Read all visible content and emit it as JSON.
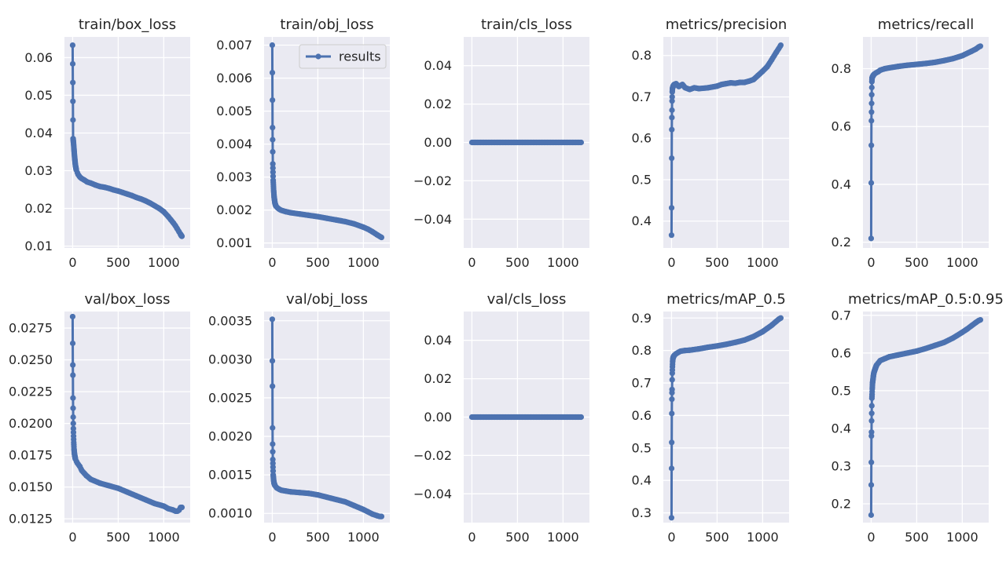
{
  "style": {
    "panel_bg": "#eaeaf2",
    "grid": "#ffffff",
    "series_color": "#4c72b0",
    "text_color": "#262626"
  },
  "legend": {
    "label": "results",
    "panel": 1,
    "placement": "upper-right"
  },
  "chart_data": [
    {
      "type": "line",
      "title": "train/box_loss",
      "xlim": [
        -90,
        1290
      ],
      "ylim": [
        0.0095,
        0.0655
      ],
      "xticks": [
        0,
        500,
        1000
      ],
      "xtick_labels": [
        "0",
        "500",
        "1000"
      ],
      "yticks": [
        0.01,
        0.02,
        0.03,
        0.04,
        0.05,
        0.06
      ],
      "ytick_labels": [
        "0.01",
        "0.02",
        "0.03",
        "0.04",
        "0.05",
        "0.06"
      ],
      "series": [
        {
          "name": "results",
          "x": [
            0,
            5,
            10,
            20,
            30,
            40,
            60,
            80,
            100,
            130,
            160,
            200,
            250,
            300,
            350,
            400,
            450,
            500,
            550,
            600,
            650,
            700,
            750,
            800,
            850,
            900,
            950,
            1000,
            1050,
            1080,
            1110,
            1130,
            1150,
            1170,
            1185,
            1195,
            1199
          ],
          "y": [
            0.0633,
            0.0385,
            0.0372,
            0.034,
            0.0315,
            0.0302,
            0.029,
            0.0283,
            0.0279,
            0.0275,
            0.027,
            0.0267,
            0.0262,
            0.0258,
            0.0256,
            0.0253,
            0.0249,
            0.0246,
            0.0242,
            0.0238,
            0.0234,
            0.0229,
            0.0225,
            0.022,
            0.0214,
            0.0207,
            0.02,
            0.0191,
            0.0178,
            0.0169,
            0.016,
            0.0153,
            0.0145,
            0.0137,
            0.0131,
            0.0127,
            0.0126
          ]
        }
      ]
    },
    {
      "type": "line",
      "title": "train/obj_loss",
      "xlim": [
        -90,
        1290
      ],
      "ylim": [
        0.00085,
        0.00725
      ],
      "xticks": [
        0,
        500,
        1000
      ],
      "xtick_labels": [
        "0",
        "500",
        "1000"
      ],
      "yticks": [
        0.001,
        0.002,
        0.003,
        0.004,
        0.005,
        0.006,
        0.007
      ],
      "ytick_labels": [
        "0.001",
        "0.002",
        "0.003",
        "0.004",
        "0.005",
        "0.006",
        "0.007"
      ],
      "series": [
        {
          "name": "results",
          "x": [
            0,
            3,
            6,
            10,
            15,
            20,
            30,
            40,
            60,
            80,
            100,
            150,
            200,
            300,
            400,
            500,
            600,
            700,
            800,
            900,
            1000,
            1050,
            1100,
            1150,
            1180,
            1199
          ],
          "y": [
            0.007,
            0.0045,
            0.0034,
            0.0029,
            0.0026,
            0.0024,
            0.0022,
            0.00212,
            0.00206,
            0.00202,
            0.00199,
            0.00195,
            0.00192,
            0.00188,
            0.00184,
            0.0018,
            0.00175,
            0.0017,
            0.00165,
            0.00158,
            0.00148,
            0.00142,
            0.00134,
            0.00125,
            0.0012,
            0.00117
          ]
        }
      ]
    },
    {
      "type": "line",
      "title": "train/cls_loss",
      "xlim": [
        -90,
        1290
      ],
      "ylim": [
        -0.055,
        0.055
      ],
      "xticks": [
        0,
        500,
        1000
      ],
      "xtick_labels": [
        "0",
        "500",
        "1000"
      ],
      "yticks": [
        -0.04,
        -0.02,
        0.0,
        0.02,
        0.04
      ],
      "ytick_labels": [
        "−0.04",
        "−0.02",
        "0.00",
        "0.02",
        "0.04"
      ],
      "series": [
        {
          "name": "results",
          "x": [
            0,
            1199
          ],
          "y": [
            0,
            0
          ]
        }
      ]
    },
    {
      "type": "line",
      "title": "metrics/precision",
      "xlim": [
        -90,
        1290
      ],
      "ylim": [
        0.335,
        0.845
      ],
      "xticks": [
        0,
        500,
        1000
      ],
      "xtick_labels": [
        "0",
        "500",
        "1000"
      ],
      "yticks": [
        0.4,
        0.5,
        0.6,
        0.7,
        0.8
      ],
      "ytick_labels": [
        "0.4",
        "0.5",
        "0.6",
        "0.7",
        "0.8"
      ],
      "series": [
        {
          "name": "results",
          "x": [
            0,
            1,
            2,
            3,
            4,
            5,
            6,
            7,
            8,
            10,
            15,
            20,
            30,
            50,
            80,
            120,
            150,
            200,
            250,
            300,
            400,
            500,
            550,
            600,
            650,
            700,
            750,
            800,
            850,
            900,
            950,
            1000,
            1050,
            1100,
            1150,
            1180,
            1199
          ],
          "y": [
            0.366,
            0.432,
            0.552,
            0.621,
            0.65,
            0.668,
            0.69,
            0.7,
            0.712,
            0.72,
            0.724,
            0.727,
            0.73,
            0.732,
            0.725,
            0.73,
            0.722,
            0.718,
            0.722,
            0.72,
            0.722,
            0.726,
            0.73,
            0.732,
            0.734,
            0.733,
            0.735,
            0.735,
            0.738,
            0.742,
            0.752,
            0.762,
            0.773,
            0.79,
            0.808,
            0.818,
            0.825
          ]
        }
      ]
    },
    {
      "type": "line",
      "title": "metrics/recall",
      "xlim": [
        -90,
        1290
      ],
      "ylim": [
        0.18,
        0.91
      ],
      "xticks": [
        0,
        500,
        1000
      ],
      "xtick_labels": [
        "0",
        "500",
        "1000"
      ],
      "yticks": [
        0.2,
        0.4,
        0.6,
        0.8
      ],
      "ytick_labels": [
        "0.2",
        "0.4",
        "0.6",
        "0.8"
      ],
      "series": [
        {
          "name": "results",
          "x": [
            0,
            1,
            2,
            3,
            4,
            5,
            6,
            7,
            8,
            10,
            15,
            20,
            30,
            50,
            80,
            100,
            150,
            200,
            300,
            400,
            500,
            600,
            700,
            800,
            900,
            1000,
            1100,
            1150,
            1180,
            1199
          ],
          "y": [
            0.213,
            0.405,
            0.535,
            0.62,
            0.65,
            0.68,
            0.71,
            0.735,
            0.755,
            0.768,
            0.772,
            0.775,
            0.78,
            0.785,
            0.79,
            0.795,
            0.8,
            0.803,
            0.808,
            0.812,
            0.815,
            0.818,
            0.822,
            0.828,
            0.835,
            0.845,
            0.86,
            0.868,
            0.875,
            0.878
          ]
        }
      ]
    },
    {
      "type": "line",
      "title": "val/box_loss",
      "xlim": [
        -90,
        1290
      ],
      "ylim": [
        0.0122,
        0.0288
      ],
      "xticks": [
        0,
        500,
        1000
      ],
      "xtick_labels": [
        "0",
        "500",
        "1000"
      ],
      "yticks": [
        0.0125,
        0.015,
        0.0175,
        0.02,
        0.0225,
        0.025,
        0.0275
      ],
      "ytick_labels": [
        "0.0125",
        "0.0150",
        "0.0175",
        "0.0200",
        "0.0225",
        "0.0250",
        "0.0275"
      ],
      "series": [
        {
          "name": "results",
          "x": [
            0,
            1,
            2,
            3,
            4,
            5,
            6,
            7,
            8,
            10,
            12,
            15,
            20,
            30,
            50,
            80,
            100,
            150,
            200,
            300,
            400,
            500,
            600,
            700,
            800,
            900,
            1000,
            1050,
            1100,
            1130,
            1150,
            1170,
            1185,
            1199
          ],
          "y": [
            0.0284,
            0.0263,
            0.0246,
            0.0238,
            0.022,
            0.0212,
            0.0205,
            0.02,
            0.0196,
            0.019,
            0.0185,
            0.018,
            0.0176,
            0.0172,
            0.0169,
            0.0166,
            0.0163,
            0.0159,
            0.0156,
            0.0153,
            0.0151,
            0.0149,
            0.0146,
            0.0143,
            0.014,
            0.0137,
            0.0135,
            0.0133,
            0.0132,
            0.0131,
            0.0131,
            0.0132,
            0.0134,
            0.0134
          ]
        }
      ]
    },
    {
      "type": "line",
      "title": "val/obj_loss",
      "xlim": [
        -90,
        1290
      ],
      "ylim": [
        0.00088,
        0.00362
      ],
      "xticks": [
        0,
        500,
        1000
      ],
      "xtick_labels": [
        "0",
        "500",
        "1000"
      ],
      "yticks": [
        0.001,
        0.0015,
        0.002,
        0.0025,
        0.003,
        0.0035
      ],
      "ytick_labels": [
        "0.0010",
        "0.0015",
        "0.0020",
        "0.0025",
        "0.0030",
        "0.0035"
      ],
      "series": [
        {
          "name": "results",
          "x": [
            0,
            1,
            2,
            3,
            4,
            5,
            6,
            8,
            10,
            15,
            20,
            30,
            50,
            80,
            100,
            150,
            200,
            300,
            400,
            500,
            600,
            700,
            800,
            900,
            1000,
            1050,
            1100,
            1150,
            1180,
            1199
          ],
          "y": [
            0.00352,
            0.00298,
            0.00265,
            0.00211,
            0.0019,
            0.0018,
            0.0017,
            0.0016,
            0.0015,
            0.00143,
            0.00139,
            0.00136,
            0.00133,
            0.00131,
            0.0013,
            0.00129,
            0.00128,
            0.00127,
            0.00126,
            0.00124,
            0.00121,
            0.00118,
            0.00115,
            0.0011,
            0.00105,
            0.00102,
            0.00099,
            0.00097,
            0.00096,
            0.00096
          ]
        }
      ]
    },
    {
      "type": "line",
      "title": "val/cls_loss",
      "xlim": [
        -90,
        1290
      ],
      "ylim": [
        -0.055,
        0.055
      ],
      "xticks": [
        0,
        500,
        1000
      ],
      "xtick_labels": [
        "0",
        "500",
        "1000"
      ],
      "yticks": [
        -0.04,
        -0.02,
        0.0,
        0.02,
        0.04
      ],
      "ytick_labels": [
        "−0.04",
        "−0.02",
        "0.00",
        "0.02",
        "0.04"
      ],
      "series": [
        {
          "name": "results",
          "x": [
            0,
            1199
          ],
          "y": [
            0,
            0
          ]
        }
      ]
    },
    {
      "type": "line",
      "title": "metrics/mAP_0.5",
      "xlim": [
        -90,
        1290
      ],
      "ylim": [
        0.27,
        0.92
      ],
      "xticks": [
        0,
        500,
        1000
      ],
      "xtick_labels": [
        "0",
        "500",
        "1000"
      ],
      "yticks": [
        0.3,
        0.4,
        0.5,
        0.6,
        0.7,
        0.8,
        0.9
      ],
      "ytick_labels": [
        "0.3",
        "0.4",
        "0.5",
        "0.6",
        "0.7",
        "0.8",
        "0.9"
      ],
      "series": [
        {
          "name": "results",
          "x": [
            0,
            1,
            2,
            3,
            4,
            5,
            6,
            7,
            8,
            10,
            12,
            15,
            20,
            30,
            50,
            80,
            100,
            150,
            200,
            300,
            400,
            500,
            600,
            700,
            800,
            900,
            1000,
            1050,
            1100,
            1150,
            1180,
            1199
          ],
          "y": [
            0.285,
            0.437,
            0.517,
            0.606,
            0.65,
            0.67,
            0.68,
            0.71,
            0.73,
            0.75,
            0.765,
            0.775,
            0.78,
            0.785,
            0.79,
            0.795,
            0.798,
            0.8,
            0.801,
            0.805,
            0.81,
            0.814,
            0.819,
            0.825,
            0.832,
            0.843,
            0.858,
            0.868,
            0.878,
            0.89,
            0.897,
            0.9
          ]
        }
      ]
    },
    {
      "type": "line",
      "title": "metrics/mAP_0.5:0.95",
      "xlim": [
        -90,
        1290
      ],
      "ylim": [
        0.15,
        0.71
      ],
      "xticks": [
        0,
        500,
        1000
      ],
      "xtick_labels": [
        "0",
        "500",
        "1000"
      ],
      "yticks": [
        0.2,
        0.3,
        0.4,
        0.5,
        0.6,
        0.7
      ],
      "ytick_labels": [
        "0.2",
        "0.3",
        "0.4",
        "0.5",
        "0.6",
        "0.7"
      ],
      "series": [
        {
          "name": "results",
          "x": [
            0,
            1,
            2,
            3,
            4,
            5,
            6,
            7,
            8,
            10,
            12,
            15,
            20,
            25,
            30,
            40,
            50,
            60,
            80,
            100,
            150,
            200,
            300,
            400,
            500,
            600,
            700,
            800,
            900,
            1000,
            1050,
            1100,
            1150,
            1180,
            1199
          ],
          "y": [
            0.17,
            0.25,
            0.31,
            0.38,
            0.39,
            0.42,
            0.44,
            0.46,
            0.48,
            0.49,
            0.505,
            0.52,
            0.53,
            0.54,
            0.548,
            0.555,
            0.562,
            0.568,
            0.574,
            0.58,
            0.585,
            0.59,
            0.595,
            0.6,
            0.605,
            0.612,
            0.62,
            0.628,
            0.64,
            0.655,
            0.663,
            0.672,
            0.681,
            0.686,
            0.688
          ]
        }
      ]
    }
  ]
}
